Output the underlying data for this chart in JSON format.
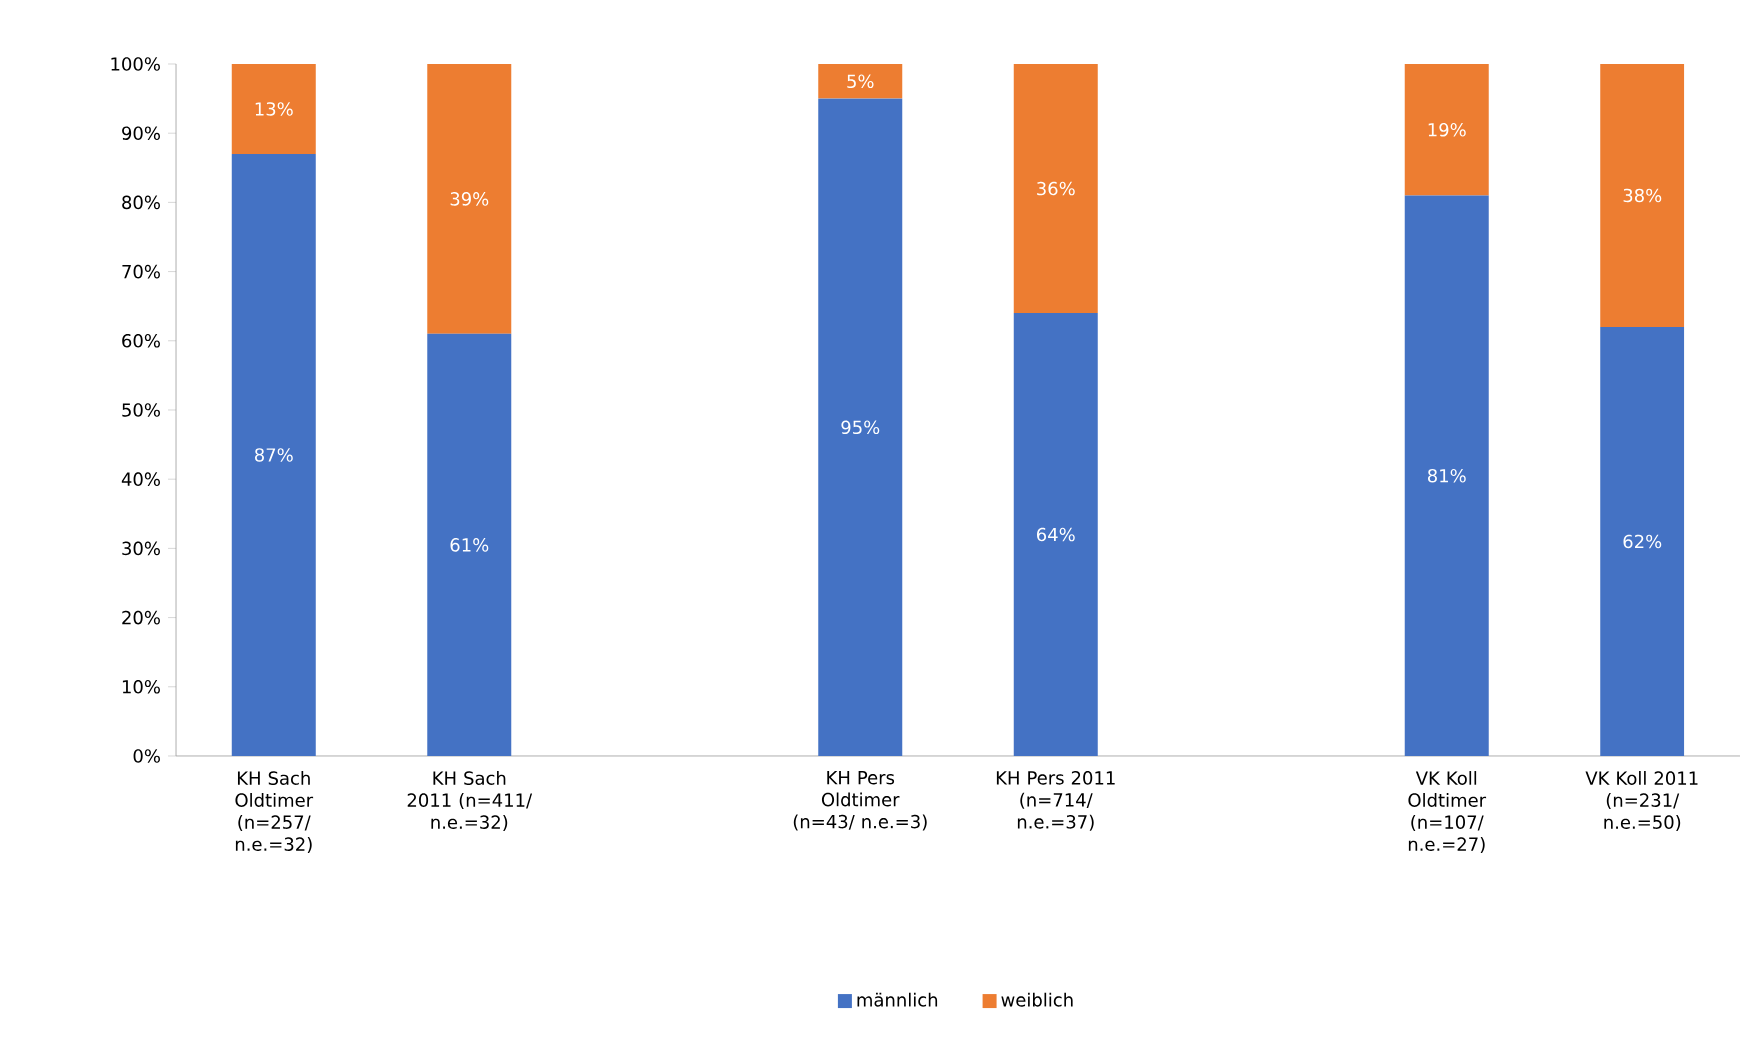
{
  "chart_data": {
    "type": "bar",
    "stacked": true,
    "categories": [
      "KH Sach Oldtimer (n=257/ n.e.=32)",
      "KH Sach 2011 (n=411/ n.e.=32)",
      null,
      "KH Pers Oldtimer (n=43/ n.e.=3)",
      "KH Pers 2011 (n=714/ n.e.=37)",
      null,
      "VK Koll Oldtimer (n=107/ n.e.=27)",
      "VK Koll 2011 (n=231/ n.e.=50)"
    ],
    "series": [
      {
        "name": "männlich",
        "color": "#4472c4",
        "values": [
          87,
          61,
          null,
          95,
          64,
          null,
          81,
          62
        ],
        "value_labels": [
          "87%",
          "61%",
          null,
          "95%",
          "64%",
          null,
          "81%",
          "62%"
        ]
      },
      {
        "name": "weiblich",
        "color": "#ed7d31",
        "values": [
          13,
          39,
          null,
          5,
          36,
          null,
          19,
          38
        ],
        "value_labels": [
          "13%",
          "39%",
          null,
          "5%",
          "36%",
          null,
          "19%",
          "38%"
        ]
      }
    ],
    "ylim": [
      0,
      100
    ],
    "yticks": [
      {
        "value": 0,
        "label": "0%"
      },
      {
        "value": 10,
        "label": "10%"
      },
      {
        "value": 20,
        "label": "20%"
      },
      {
        "value": 30,
        "label": "30%"
      },
      {
        "value": 40,
        "label": "40%"
      },
      {
        "value": 50,
        "label": "50%"
      },
      {
        "value": 60,
        "label": "60%"
      },
      {
        "value": 70,
        "label": "70%"
      },
      {
        "value": 80,
        "label": "80%"
      },
      {
        "value": 90,
        "label": "90%"
      },
      {
        "value": 100,
        "label": "100%"
      }
    ],
    "legend": "bottom"
  }
}
